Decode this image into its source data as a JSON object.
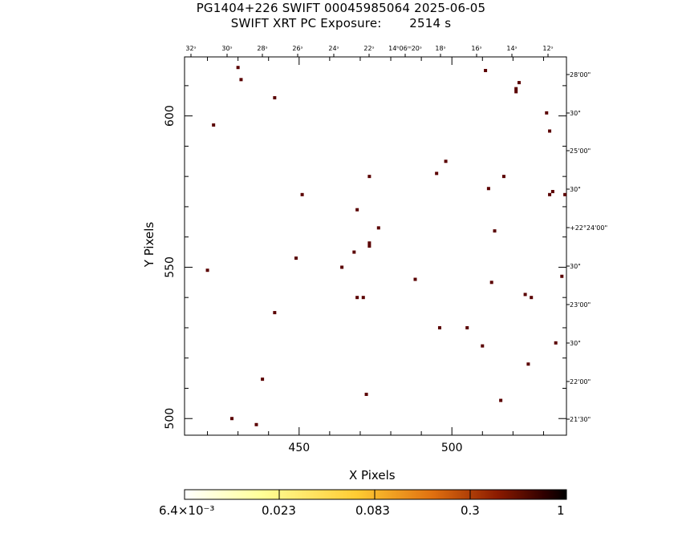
{
  "title_line1": "PG1404+226 SWIFT 00045985064 2025-06-05",
  "title_line2": "SWIFT XRT PC Exposure:       2514 s",
  "chart_data": {
    "type": "scatter",
    "title": "PG1404+226 SWIFT 00045985064 2025-06-05",
    "subtitle": "SWIFT XRT PC Exposure:       2514 s",
    "xlabel": "X Pixels",
    "ylabel": "Y Pixels",
    "xlim": [
      412.5,
      537.5
    ],
    "ylim": [
      494.5,
      619.5
    ],
    "x_ticks": [
      450,
      500
    ],
    "y_ticks": [
      500,
      550,
      600
    ],
    "ra_ticks": [
      "32ˢ",
      "30ˢ",
      "28ˢ",
      "26ˢ",
      "24ˢ",
      "22ˢ",
      "14ʰ06ᵐ20ˢ",
      "18ˢ",
      "16ˢ",
      "14ˢ",
      "12ˢ"
    ],
    "dec_ticks": [
      "28'00\"",
      "30\"",
      "25'00\"",
      "30\"",
      "+22°24'00\"",
      "30\"",
      "23'00\"",
      "30\"",
      "22'00\"",
      "21'30\""
    ],
    "points": [
      {
        "x": 430,
        "y": 616
      },
      {
        "x": 431,
        "y": 612
      },
      {
        "x": 442,
        "y": 606
      },
      {
        "x": 422,
        "y": 597
      },
      {
        "x": 451,
        "y": 574
      },
      {
        "x": 473,
        "y": 580
      },
      {
        "x": 469,
        "y": 569
      },
      {
        "x": 476,
        "y": 563
      },
      {
        "x": 473,
        "y": 558
      },
      {
        "x": 473,
        "y": 557
      },
      {
        "x": 468,
        "y": 555
      },
      {
        "x": 449,
        "y": 553
      },
      {
        "x": 464,
        "y": 550
      },
      {
        "x": 420,
        "y": 549
      },
      {
        "x": 488,
        "y": 546
      },
      {
        "x": 469,
        "y": 540
      },
      {
        "x": 471,
        "y": 540
      },
      {
        "x": 442,
        "y": 535
      },
      {
        "x": 495,
        "y": 581
      },
      {
        "x": 498,
        "y": 585
      },
      {
        "x": 512,
        "y": 576
      },
      {
        "x": 517,
        "y": 580
      },
      {
        "x": 514,
        "y": 562
      },
      {
        "x": 513,
        "y": 545
      },
      {
        "x": 496,
        "y": 530
      },
      {
        "x": 505,
        "y": 530
      },
      {
        "x": 510,
        "y": 524
      },
      {
        "x": 511,
        "y": 615
      },
      {
        "x": 521,
        "y": 609
      },
      {
        "x": 521,
        "y": 608
      },
      {
        "x": 522,
        "y": 611
      },
      {
        "x": 531,
        "y": 601
      },
      {
        "x": 532,
        "y": 595
      },
      {
        "x": 532,
        "y": 574
      },
      {
        "x": 533,
        "y": 575
      },
      {
        "x": 537,
        "y": 574
      },
      {
        "x": 536,
        "y": 547
      },
      {
        "x": 524,
        "y": 541
      },
      {
        "x": 526,
        "y": 540
      },
      {
        "x": 534,
        "y": 525
      },
      {
        "x": 525,
        "y": 518
      },
      {
        "x": 438,
        "y": 513
      },
      {
        "x": 472,
        "y": 508
      },
      {
        "x": 516,
        "y": 506
      },
      {
        "x": 428,
        "y": 500
      },
      {
        "x": 436,
        "y": 498
      }
    ],
    "point_color": "#5a0000",
    "colorbar": {
      "labels": [
        "6.4×10⁻³",
        "0.023",
        "0.083",
        "0.3",
        "1"
      ],
      "gradient": [
        "#ffffff",
        "#ffff99",
        "#ffcc33",
        "#e07010",
        "#8b1a00",
        "#300000",
        "#000000"
      ]
    }
  }
}
